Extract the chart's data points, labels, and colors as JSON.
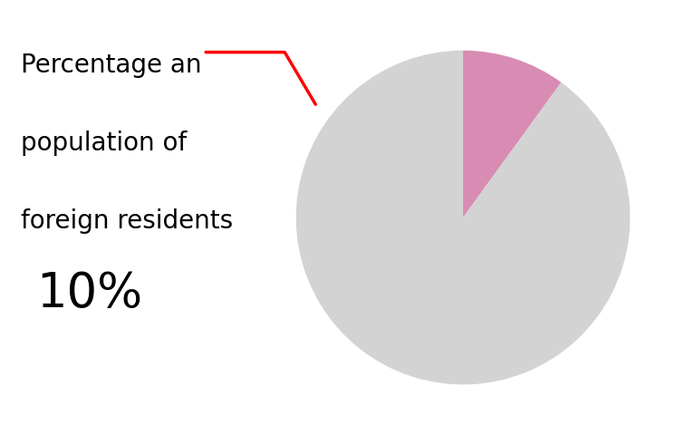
{
  "slices": [
    10,
    90
  ],
  "colors": [
    "#d98cb3",
    "#d3d3d3"
  ],
  "label_text_line1": "Percentage an",
  "label_text_line2": "population of",
  "label_text_line3": "foreign residents",
  "label_value": "10%",
  "label_fontsize": 20,
  "value_fontsize": 38,
  "annotation_color": "#ff0000",
  "background_color": "#ffffff",
  "startangle": 90
}
